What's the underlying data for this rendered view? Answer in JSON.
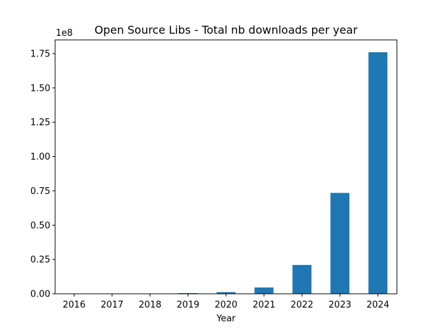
{
  "chart_data": {
    "type": "bar",
    "title": "Open Source Libs - Total nb downloads per year",
    "xlabel": "Year",
    "ylabel": "",
    "y_offset_label": "1e8",
    "categories": [
      "2016",
      "2017",
      "2018",
      "2019",
      "2020",
      "2021",
      "2022",
      "2023",
      "2024"
    ],
    "values": [
      0,
      0,
      0,
      500000,
      1200000,
      4600000,
      21000000,
      73500000,
      176000000
    ],
    "ylim": [
      0,
      185000000
    ],
    "yticks": [
      0,
      25000000,
      50000000,
      75000000,
      100000000,
      125000000,
      150000000,
      175000000
    ],
    "ytick_labels": [
      "0.00",
      "0.25",
      "0.50",
      "0.75",
      "1.00",
      "1.25",
      "1.50",
      "1.75"
    ],
    "bar_color": "#1f77b4",
    "grid": false,
    "legend": "none"
  }
}
